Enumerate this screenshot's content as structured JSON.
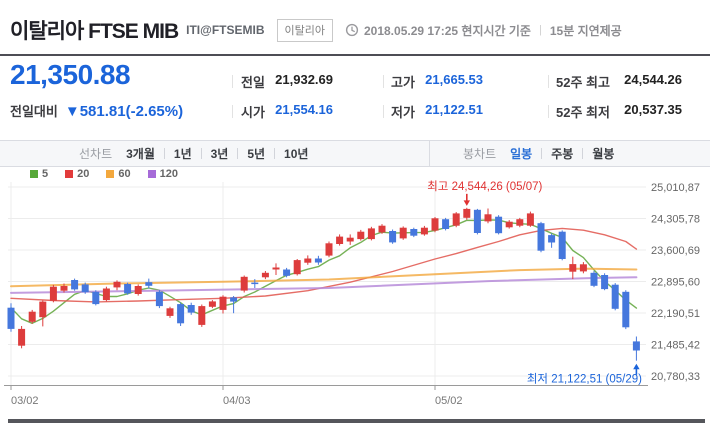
{
  "header": {
    "title": "이탈리아 FTSE MIB",
    "symbol": "ITI@FTSEMIB",
    "country_badge": "이탈리아",
    "timestamp": "2018.05.29 17:25 현지시간 기준",
    "separator": "|",
    "delay_notice": "15분 지연제공"
  },
  "quote": {
    "price": "21,350.88",
    "change_label": "전일대비",
    "change_direction": "▼",
    "change_text": "581.81(-2.65%)"
  },
  "quote_table": {
    "columns": [
      {
        "rows": [
          {
            "label": "전일",
            "value": "21,932.69",
            "emphasis": "black"
          },
          {
            "label": "시가",
            "value": "21,554.16",
            "emphasis": "blue"
          }
        ]
      },
      {
        "rows": [
          {
            "label": "고가",
            "value": "21,665.53",
            "emphasis": "blue"
          },
          {
            "label": "저가",
            "value": "21,122.51",
            "emphasis": "blue"
          }
        ]
      },
      {
        "rows": [
          {
            "label": "52주 최고",
            "value": "24,544.26",
            "emphasis": "black"
          },
          {
            "label": "52주 최저",
            "value": "20,537.35",
            "emphasis": "black"
          }
        ]
      }
    ]
  },
  "controls": {
    "line_chart_label": "선차트",
    "line_periods": [
      "3개월",
      "1년",
      "3년",
      "5년",
      "10년"
    ],
    "candle_chart_label": "봉차트",
    "candle_periods": [
      "일봉",
      "주봉",
      "월봉"
    ],
    "selected_candle_period": "일봉"
  },
  "legend": {
    "items": [
      {
        "label": "5",
        "color": "#57a839"
      },
      {
        "label": "20",
        "color": "#e23b3b"
      },
      {
        "label": "60",
        "color": "#f3a83d"
      },
      {
        "label": "120",
        "color": "#a66bd8"
      }
    ]
  },
  "colors": {
    "up_candle": "#dd3c3c",
    "down_candle": "#4577dd",
    "grid": "#ececec",
    "axis": "#9a9a9a",
    "axis_label": "#777777",
    "y_label": "#666666",
    "high_annotation": "#e03131",
    "low_annotation": "#1b64da",
    "price_blue": "#1b64da"
  },
  "chart_data": {
    "type": "candlestick",
    "title": "이탈리아 FTSE MIB 일봉 차트 (3개월)",
    "x_ticks": [
      {
        "index": 0,
        "label": "03/02"
      },
      {
        "index": 20,
        "label": "04/03"
      },
      {
        "index": 40,
        "label": "05/02"
      }
    ],
    "y_ticks": [
      {
        "value": 25010.87,
        "label": "25,010,87"
      },
      {
        "value": 24305.78,
        "label": "24,305,78"
      },
      {
        "value": 23600.69,
        "label": "23,600,69"
      },
      {
        "value": 22895.6,
        "label": "22,895,60"
      },
      {
        "value": 22190.51,
        "label": "22,190,51"
      },
      {
        "value": 21485.42,
        "label": "21,485,42"
      },
      {
        "value": 20780.33,
        "label": "20,780,33"
      }
    ],
    "candles_format": [
      "open",
      "high",
      "low",
      "close"
    ],
    "candles": [
      [
        22310,
        22410,
        21770,
        21835
      ],
      [
        21460,
        21900,
        21400,
        21835
      ],
      [
        21995,
        22260,
        21950,
        22220
      ],
      [
        22095,
        22470,
        21890,
        22445
      ],
      [
        22465,
        22820,
        22430,
        22780
      ],
      [
        22690,
        22850,
        22650,
        22795
      ],
      [
        22930,
        22960,
        22690,
        22720
      ],
      [
        22830,
        22870,
        22620,
        22655
      ],
      [
        22665,
        22700,
        22360,
        22390
      ],
      [
        22480,
        22780,
        22450,
        22740
      ],
      [
        22765,
        22920,
        22700,
        22890
      ],
      [
        22840,
        22870,
        22600,
        22630
      ],
      [
        22615,
        22830,
        22580,
        22795
      ],
      [
        22880,
        22960,
        22740,
        22800
      ],
      [
        22665,
        22700,
        22300,
        22345
      ],
      [
        22125,
        22330,
        22080,
        22295
      ],
      [
        22390,
        22420,
        21900,
        21960
      ],
      [
        22370,
        22420,
        22150,
        22200
      ],
      [
        21925,
        22380,
        21880,
        22345
      ],
      [
        22330,
        22480,
        22300,
        22450
      ],
      [
        22260,
        22590,
        22180,
        22555
      ],
      [
        22540,
        22570,
        22185,
        22445
      ],
      [
        22690,
        23030,
        22650,
        23000
      ],
      [
        22870,
        22950,
        22750,
        22845
      ],
      [
        22990,
        23130,
        22950,
        23090
      ],
      [
        23165,
        23300,
        23040,
        23210
      ],
      [
        23165,
        23200,
        22990,
        23025
      ],
      [
        23060,
        23400,
        23030,
        23375
      ],
      [
        23315,
        23480,
        23270,
        23410
      ],
      [
        23410,
        23470,
        23270,
        23320
      ],
      [
        23475,
        23790,
        23440,
        23750
      ],
      [
        23735,
        23950,
        23700,
        23900
      ],
      [
        23790,
        23950,
        23715,
        23875
      ],
      [
        23845,
        24050,
        23810,
        24010
      ],
      [
        23845,
        24120,
        23815,
        24085
      ],
      [
        23996,
        24180,
        23960,
        24145
      ],
      [
        24025,
        24060,
        23740,
        23770
      ],
      [
        23860,
        24130,
        23830,
        24100
      ],
      [
        24070,
        24100,
        23890,
        23920
      ],
      [
        23950,
        24140,
        23920,
        24100
      ],
      [
        24035,
        24340,
        24000,
        24310
      ],
      [
        24290,
        24320,
        24040,
        24070
      ],
      [
        24145,
        24450,
        24110,
        24420
      ],
      [
        24320,
        24544.26,
        24280,
        24520
      ],
      [
        24500,
        24520,
        23950,
        23980
      ],
      [
        24240,
        24530,
        24200,
        24400
      ],
      [
        24345,
        24380,
        23950,
        23975
      ],
      [
        24110,
        24270,
        24080,
        24235
      ],
      [
        24145,
        24320,
        24110,
        24290
      ],
      [
        24145,
        24460,
        24120,
        24420
      ],
      [
        24200,
        24230,
        23550,
        23585
      ],
      [
        23935,
        23970,
        23650,
        23770
      ],
      [
        24010,
        24040,
        23370,
        23400
      ],
      [
        23115,
        23450,
        22950,
        23285
      ],
      [
        23120,
        23330,
        23080,
        23280
      ],
      [
        23090,
        23130,
        22770,
        22800
      ],
      [
        23040,
        23080,
        22700,
        22725
      ],
      [
        22825,
        22860,
        22250,
        22285
      ],
      [
        22665,
        22700,
        21830,
        21870
      ],
      [
        21554.16,
        21665.53,
        21122.51,
        21350.88
      ]
    ],
    "moving_averages": [
      {
        "name": "5",
        "color": "#6fae4e",
        "width": 1.4,
        "opacity": 0.95,
        "points": [
          [
            0,
            22310
          ],
          [
            1,
            22060
          ],
          [
            2,
            21960
          ],
          [
            3,
            22070
          ],
          [
            4,
            22230
          ],
          [
            5,
            22420
          ],
          [
            6,
            22610
          ],
          [
            7,
            22695
          ],
          [
            8,
            22630
          ],
          [
            9,
            22560
          ],
          [
            10,
            22560
          ],
          [
            11,
            22620
          ],
          [
            12,
            22700
          ],
          [
            13,
            22750
          ],
          [
            14,
            22700
          ],
          [
            15,
            22565
          ],
          [
            16,
            22420
          ],
          [
            17,
            22240
          ],
          [
            18,
            22150
          ],
          [
            19,
            22250
          ],
          [
            20,
            22350
          ],
          [
            21,
            22400
          ],
          [
            22,
            22560
          ],
          [
            23,
            22660
          ],
          [
            24,
            22790
          ],
          [
            25,
            22915
          ],
          [
            26,
            23035
          ],
          [
            27,
            23100
          ],
          [
            28,
            23170
          ],
          [
            29,
            23230
          ],
          [
            30,
            23375
          ],
          [
            31,
            23470
          ],
          [
            32,
            23650
          ],
          [
            33,
            23770
          ],
          [
            34,
            23925
          ],
          [
            35,
            24000
          ],
          [
            36,
            23980
          ],
          [
            37,
            23985
          ],
          [
            38,
            23990
          ],
          [
            39,
            23995
          ],
          [
            40,
            24040
          ],
          [
            41,
            24100
          ],
          [
            42,
            24165
          ],
          [
            43,
            24265
          ],
          [
            44,
            24260
          ],
          [
            45,
            24275
          ],
          [
            46,
            24270
          ],
          [
            47,
            24210
          ],
          [
            48,
            24190
          ],
          [
            49,
            24175
          ],
          [
            50,
            24080
          ],
          [
            51,
            23975
          ],
          [
            52,
            23880
          ],
          [
            53,
            23590
          ],
          [
            54,
            23430
          ],
          [
            55,
            23155
          ],
          [
            56,
            22900
          ],
          [
            57,
            22700
          ],
          [
            58,
            22480
          ],
          [
            59,
            22300
          ]
        ]
      },
      {
        "name": "20",
        "color": "#e25d55",
        "width": 1.4,
        "opacity": 0.9,
        "points": [
          [
            0,
            22520
          ],
          [
            4,
            22470
          ],
          [
            8,
            22440
          ],
          [
            12,
            22460
          ],
          [
            16,
            22490
          ],
          [
            20,
            22520
          ],
          [
            24,
            22570
          ],
          [
            28,
            22690
          ],
          [
            32,
            22880
          ],
          [
            36,
            23120
          ],
          [
            40,
            23400
          ],
          [
            42,
            23520
          ],
          [
            44,
            23660
          ],
          [
            46,
            23790
          ],
          [
            48,
            23940
          ],
          [
            50,
            24040
          ],
          [
            52,
            24085
          ],
          [
            54,
            24045
          ],
          [
            56,
            23940
          ],
          [
            58,
            23790
          ],
          [
            59,
            23620
          ]
        ]
      },
      {
        "name": "60",
        "color": "#f3a83d",
        "width": 2,
        "opacity": 0.8,
        "points": [
          [
            0,
            22790
          ],
          [
            10,
            22850
          ],
          [
            20,
            22890
          ],
          [
            30,
            22940
          ],
          [
            40,
            23060
          ],
          [
            48,
            23150
          ],
          [
            54,
            23185
          ],
          [
            59,
            23165
          ]
        ]
      },
      {
        "name": "120",
        "color": "#b78cd9",
        "width": 2,
        "opacity": 0.85,
        "points": [
          [
            0,
            22640
          ],
          [
            15,
            22695
          ],
          [
            30,
            22750
          ],
          [
            45,
            22905
          ],
          [
            55,
            22975
          ],
          [
            59,
            22990
          ]
        ]
      }
    ],
    "annotations": {
      "high": {
        "text": "최고 24,544,26 (05/07)",
        "candle_index": 43,
        "value": 24544.26
      },
      "low": {
        "text": "최저 21,122,51 (05/29)",
        "candle_index": 59,
        "value": 21122.51
      }
    }
  }
}
